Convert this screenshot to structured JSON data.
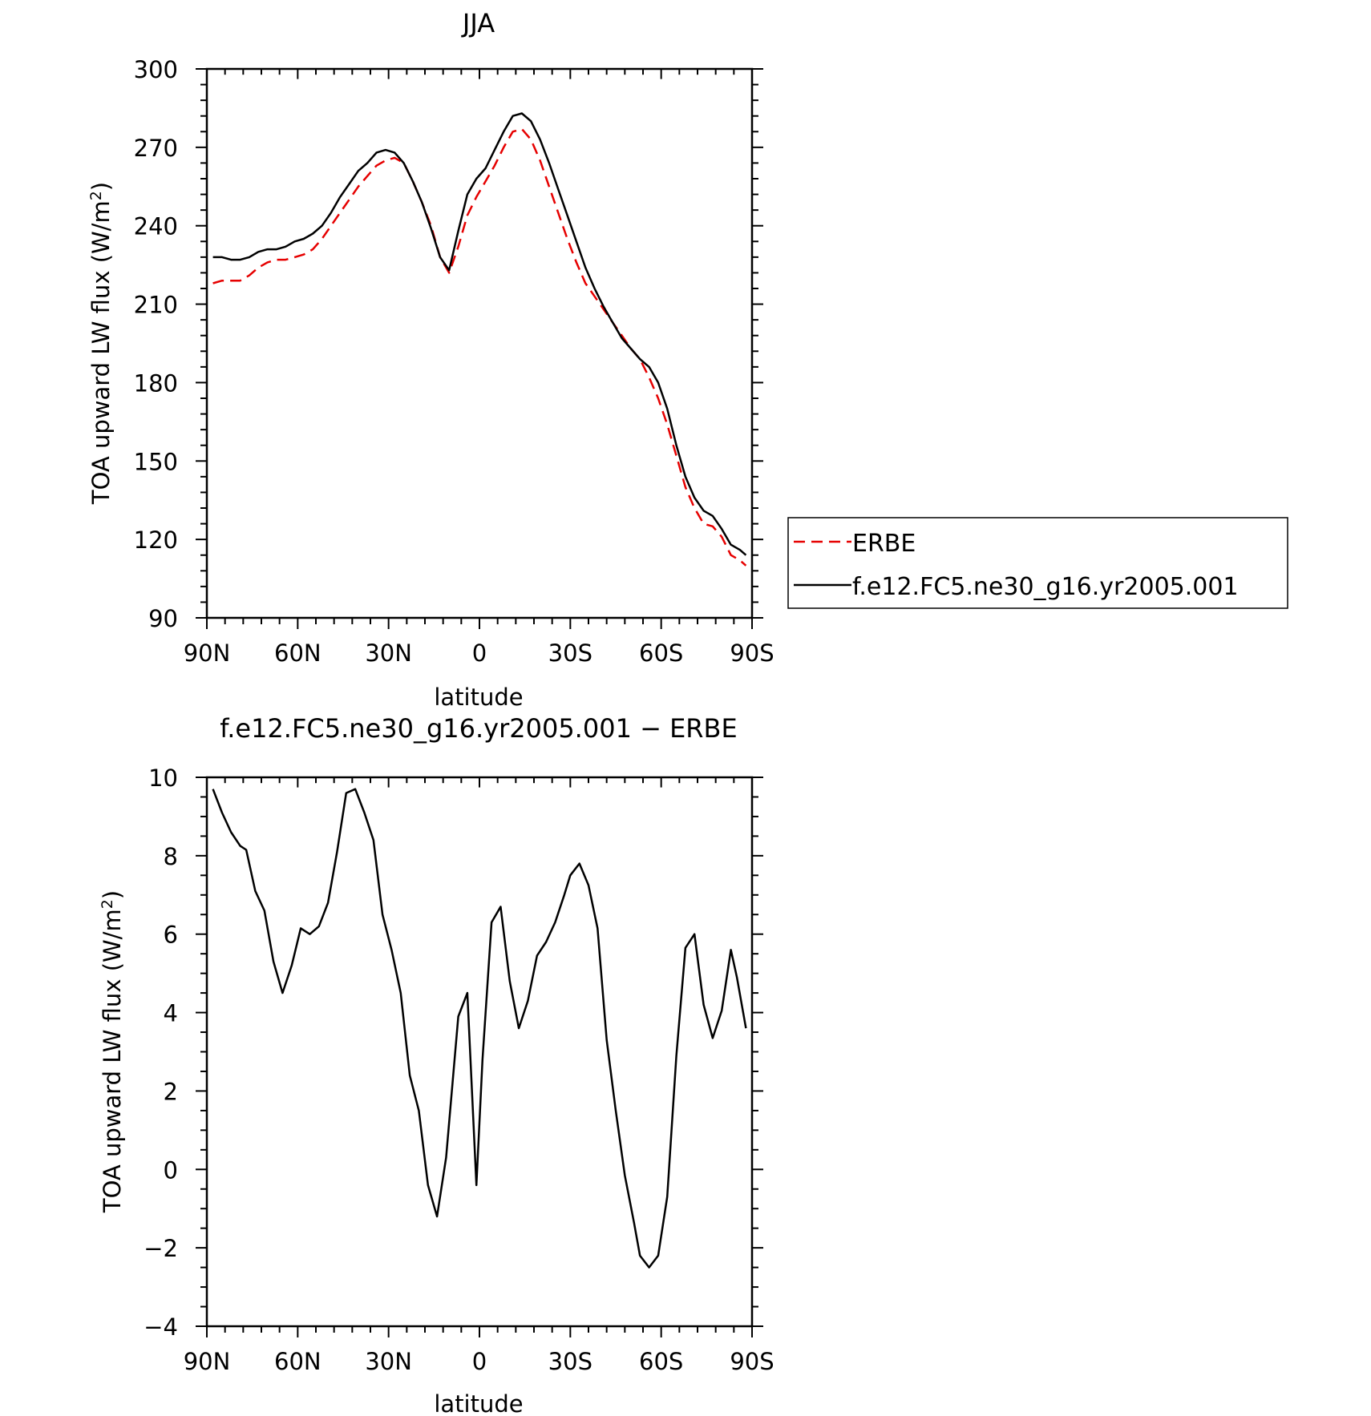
{
  "chart_data": [
    {
      "type": "line",
      "title": "JJA",
      "xlabel": "latitude",
      "ylabel": "TOA upward LW flux (W/m²)",
      "ylabel_main": "TOA upward LW flux (W/m",
      "ylabel_sup": "2",
      "ylabel_end": ")",
      "xlim": [
        -90,
        90
      ],
      "ylim": [
        90,
        300
      ],
      "xticks": [
        -90,
        -60,
        -30,
        0,
        30,
        60,
        90
      ],
      "xticklabels": [
        "90N",
        "60N",
        "30N",
        "0",
        "30S",
        "60S",
        "90S"
      ],
      "yticks": [
        90,
        120,
        150,
        180,
        210,
        240,
        270,
        300
      ],
      "yticklabels": [
        "90",
        "120",
        "150",
        "180",
        "210",
        "240",
        "270",
        "300"
      ],
      "legend": "right",
      "x": [
        -88,
        -85,
        -82,
        -79,
        -76,
        -73,
        -70,
        -67,
        -64,
        -61,
        -58,
        -55,
        -52,
        -49,
        -46,
        -43,
        -40,
        -37,
        -34,
        -31,
        -28,
        -25,
        -22,
        -19,
        -16,
        -13,
        -10,
        -7,
        -4,
        -1,
        2,
        5,
        8,
        11,
        14,
        17,
        20,
        23,
        26,
        29,
        32,
        35,
        38,
        41,
        44,
        47,
        50,
        53,
        56,
        59,
        62,
        65,
        68,
        71,
        74,
        77,
        80,
        83,
        86,
        88
      ],
      "series": [
        {
          "name": "ERBE",
          "color": "#e60000",
          "dash": true,
          "values": [
            218,
            219,
            219,
            219,
            221,
            224,
            226,
            227,
            227,
            228,
            229,
            231,
            235,
            240,
            245,
            250,
            255,
            259,
            263,
            265,
            266,
            264,
            257,
            249,
            240,
            228,
            222,
            232,
            244,
            251,
            257,
            263,
            270,
            276,
            277,
            273,
            265,
            255,
            245,
            235,
            226,
            218,
            213,
            208,
            203,
            198,
            193,
            189,
            182,
            174,
            164,
            152,
            140,
            132,
            126,
            125,
            121,
            114,
            112,
            110
          ]
        },
        {
          "name": "f.e12.FC5.ne30_g16.yr2005.001",
          "color": "#000000",
          "dash": false,
          "values": [
            228,
            228,
            227,
            227,
            228,
            230,
            231,
            231,
            232,
            234,
            235,
            237,
            240,
            245,
            251,
            256,
            261,
            264,
            268,
            269,
            268,
            264,
            257,
            249,
            239,
            228,
            223,
            238,
            252,
            258,
            262,
            269,
            276,
            282,
            283,
            280,
            273,
            264,
            254,
            244,
            234,
            224,
            216,
            209,
            203,
            197,
            193,
            189,
            186,
            180,
            170,
            156,
            144,
            136,
            131,
            129,
            124,
            118,
            116,
            114
          ]
        }
      ]
    },
    {
      "type": "line",
      "title": "f.e12.FC5.ne30_g16.yr2005.001 − ERBE",
      "xlabel": "latitude",
      "ylabel": "TOA upward LW flux (W/m²)",
      "ylabel_main": "TOA upward LW flux (W/m",
      "ylabel_sup": "2",
      "ylabel_end": ")",
      "xlim": [
        -90,
        90
      ],
      "ylim": [
        -4,
        10
      ],
      "xticks": [
        -90,
        -60,
        -30,
        0,
        30,
        60,
        90
      ],
      "xticklabels": [
        "90N",
        "60N",
        "30N",
        "0",
        "30S",
        "60S",
        "90S"
      ],
      "yticks": [
        -4,
        -2,
        0,
        2,
        4,
        6,
        8,
        10
      ],
      "yticklabels": [
        "−4",
        "−2",
        "0",
        "2",
        "4",
        "6",
        "8",
        "10"
      ],
      "x": [
        -88,
        -85,
        -82,
        -79,
        -77,
        -74,
        -71,
        -68,
        -65,
        -62,
        -59,
        -56,
        -53,
        -50,
        -47,
        -44,
        -41,
        -38,
        -35,
        -32,
        -29,
        -26,
        -23,
        -20,
        -17,
        -14,
        -11,
        -7,
        -4,
        -1,
        1,
        4,
        7,
        10,
        13,
        16,
        19,
        22,
        25,
        28,
        30,
        33,
        36,
        39,
        42,
        45,
        48,
        51,
        53,
        56,
        59,
        62,
        65,
        68,
        71,
        74,
        77,
        80,
        83,
        85,
        88
      ],
      "series": [
        {
          "color": "#000000",
          "dash": false,
          "values": [
            9.7,
            9.1,
            8.6,
            8.25,
            8.15,
            7.1,
            6.6,
            5.3,
            4.5,
            5.2,
            6.15,
            6.0,
            6.2,
            6.8,
            8.1,
            9.6,
            9.7,
            9.1,
            8.4,
            6.5,
            5.6,
            4.5,
            2.4,
            1.5,
            -0.4,
            -1.2,
            0.3,
            3.9,
            4.5,
            -0.4,
            2.8,
            6.3,
            6.7,
            4.8,
            3.6,
            4.3,
            5.45,
            5.8,
            6.3,
            7.0,
            7.5,
            7.8,
            7.25,
            6.15,
            3.3,
            1.5,
            -0.15,
            -1.35,
            -2.2,
            -2.5,
            -2.2,
            -0.7,
            2.9,
            5.65,
            6.0,
            4.2,
            3.35,
            4.05,
            5.6,
            4.9,
            3.6
          ]
        }
      ]
    }
  ]
}
